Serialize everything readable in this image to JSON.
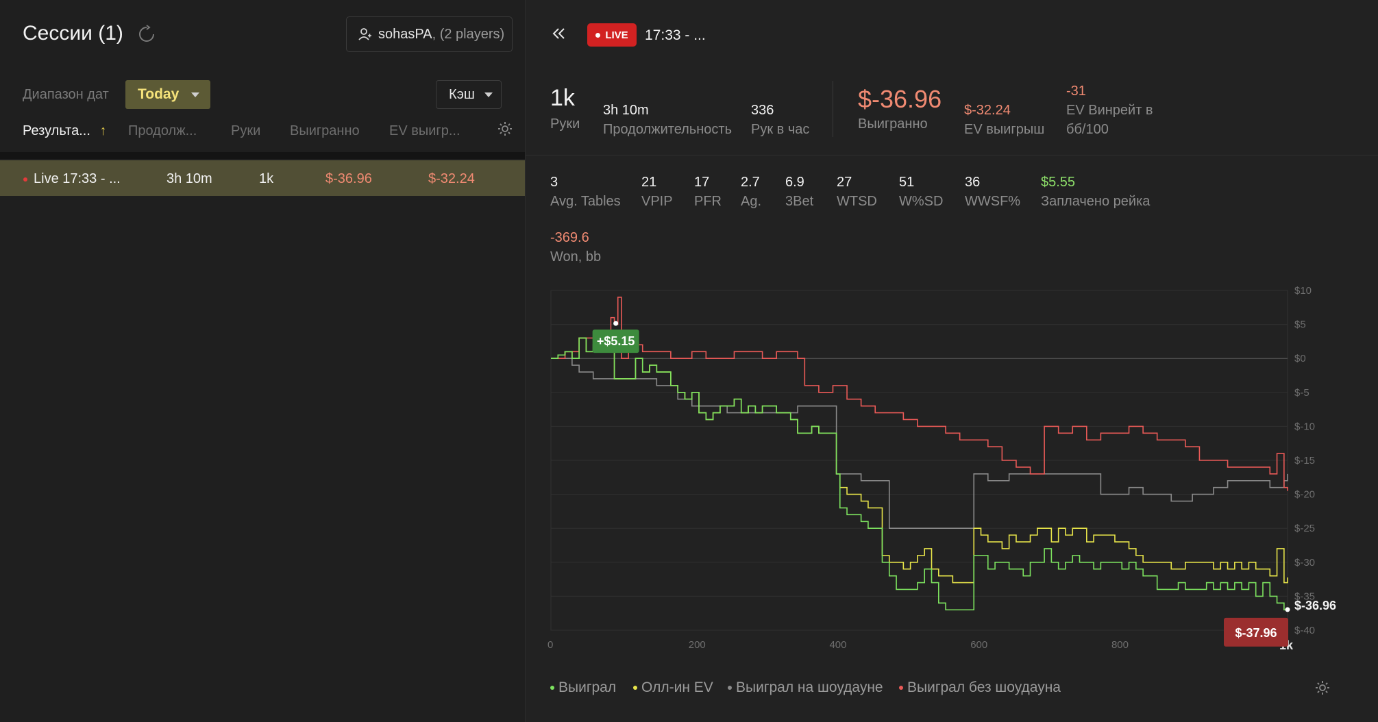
{
  "sessions": {
    "title": "Сессии (1)",
    "player_name": "sohasPA",
    "player_count": ", (2 players)",
    "date_range_label": "Диапазон дат",
    "date_range_value": "Today",
    "game_type": "Кэш",
    "columns": [
      "Результа...",
      "Продолж...",
      "Руки",
      "Выигранно",
      "EV выигр..."
    ],
    "sort_arrow": "↑",
    "rows": [
      {
        "name": "Live 17:33 - ...",
        "duration": "3h 10m",
        "hands": "1k",
        "won": "$-36.96",
        "ev_won": "$-32.24"
      }
    ]
  },
  "session": {
    "live_label": "LIVE",
    "title": "17:33 - ...",
    "stats": {
      "hands_value": "1k",
      "hands_label": "Руки",
      "duration_value": "3h 10m",
      "duration_label": "Продолжительность",
      "rate_value": "336",
      "rate_label": "Рук в час",
      "won_value": "$-36.96",
      "won_label": "Выигранно",
      "ev_value": "$-32.24",
      "ev_label": "EV выигрыш",
      "evbb_value": "-31",
      "evbb_label_1": "EV Винрейт в",
      "evbb_label_2": "бб/100"
    },
    "stats2": [
      {
        "value": "3",
        "label": "Avg. Tables"
      },
      {
        "value": "21",
        "label": "VPIP"
      },
      {
        "value": "17",
        "label": "PFR"
      },
      {
        "value": "2.7",
        "label": "Ag."
      },
      {
        "value": "6.9",
        "label": "3Bet"
      },
      {
        "value": "27",
        "label": "WTSD"
      },
      {
        "value": "51",
        "label": "W%SD"
      },
      {
        "value": "36",
        "label": "WWSF%"
      },
      {
        "value": "$5.55",
        "label": "Заплачено рейка"
      }
    ],
    "won_bb_value": "-369.6",
    "won_bb_label": "Won, bb"
  },
  "chart_data": {
    "type": "line",
    "x_ticks": [
      "0",
      "200",
      "400",
      "600",
      "800",
      "1k"
    ],
    "y_ticks": [
      "$10",
      "$5",
      "$0",
      "$-5",
      "$-10",
      "$-15",
      "$-20",
      "$-25",
      "$-30",
      "$-35",
      "$-40"
    ],
    "xlim": [
      0,
      1045
    ],
    "ylim": [
      -40,
      10
    ],
    "grid": true,
    "end_label": "$-36.96",
    "max_tooltip": "+$5.15",
    "min_tooltip": "$-37.96",
    "legend": [
      "Выиграл",
      "Олл-ин EV",
      "Выиграл на шоудауне",
      "Выиграл без шоудауна"
    ],
    "legend_placement": "bottom",
    "series": [
      {
        "name": "Выиграл",
        "color": "#7de35f",
        "x": [
          0,
          10,
          20,
          30,
          40,
          50,
          60,
          70,
          80,
          90,
          100,
          110,
          120,
          130,
          140,
          150,
          160,
          170,
          180,
          190,
          200,
          210,
          220,
          230,
          240,
          250,
          260,
          270,
          280,
          290,
          300,
          310,
          320,
          330,
          340,
          350,
          360,
          370,
          380,
          390,
          400,
          405,
          410,
          420,
          430,
          440,
          450,
          460,
          470,
          480,
          490,
          500,
          510,
          520,
          530,
          540,
          550,
          560,
          570,
          580,
          590,
          595,
          600,
          610,
          620,
          630,
          640,
          650,
          660,
          670,
          680,
          690,
          700,
          710,
          720,
          730,
          740,
          750,
          760,
          770,
          780,
          790,
          800,
          810,
          820,
          830,
          840,
          850,
          860,
          870,
          880,
          890,
          900,
          910,
          920,
          930,
          940,
          950,
          960,
          970,
          980,
          990,
          1000,
          1010,
          1020,
          1030,
          1040,
          1045
        ],
        "y": [
          0,
          0.5,
          1,
          0,
          3,
          1,
          2,
          4,
          2,
          -3,
          -3,
          -3,
          0,
          -2,
          -1,
          -2,
          -2,
          -4,
          -5,
          -6,
          -5,
          -8,
          -9,
          -8,
          -7,
          -7,
          -6,
          -8,
          -7,
          -8,
          -7,
          -7,
          -8,
          -8,
          -9,
          -11,
          -11,
          -10,
          -11,
          -11,
          -11,
          -17,
          -22,
          -23,
          -23,
          -24,
          -25,
          -25,
          -30,
          -32,
          -34,
          -34,
          -34,
          -33,
          -31,
          -33,
          -36,
          -37,
          -37,
          -37,
          -37,
          -37,
          -29,
          -29,
          -31,
          -30,
          -30,
          -31,
          -31,
          -32,
          -30,
          -30,
          -28,
          -30,
          -31,
          -30,
          -29,
          -30,
          -30,
          -31,
          -30,
          -30,
          -30,
          -31,
          -30,
          -31,
          -32,
          -32,
          -34,
          -34,
          -34,
          -33,
          -34,
          -34,
          -34,
          -33,
          -34,
          -33,
          -34,
          -33,
          -34,
          -33,
          -35,
          -33,
          -35,
          -36,
          -37,
          -36.96
        ]
      },
      {
        "name": "Олл-ин EV",
        "color": "#e8e54a",
        "x": [
          0,
          10,
          20,
          30,
          40,
          50,
          60,
          70,
          80,
          90,
          100,
          110,
          120,
          130,
          140,
          150,
          160,
          170,
          180,
          190,
          200,
          210,
          220,
          230,
          240,
          250,
          260,
          270,
          280,
          290,
          300,
          310,
          320,
          330,
          340,
          350,
          360,
          370,
          380,
          390,
          400,
          405,
          410,
          420,
          430,
          440,
          450,
          460,
          470,
          480,
          490,
          500,
          510,
          520,
          530,
          540,
          550,
          560,
          570,
          580,
          590,
          595,
          600,
          610,
          620,
          630,
          640,
          650,
          660,
          670,
          680,
          690,
          700,
          710,
          720,
          730,
          740,
          750,
          760,
          770,
          780,
          790,
          800,
          810,
          820,
          830,
          840,
          850,
          860,
          870,
          880,
          890,
          900,
          910,
          920,
          930,
          940,
          950,
          960,
          970,
          980,
          990,
          1000,
          1010,
          1020,
          1030,
          1040,
          1045
        ],
        "y": [
          0,
          0.5,
          1,
          0,
          3,
          1,
          2,
          4,
          2,
          -3,
          -3,
          -3,
          0,
          -2,
          -1,
          -2,
          -2,
          -4,
          -5,
          -6,
          -5,
          -8,
          -9,
          -8,
          -7,
          -7,
          -6,
          -8,
          -7,
          -8,
          -7,
          -7,
          -8,
          -8,
          -9,
          -11,
          -11,
          -10,
          -11,
          -11,
          -11,
          -17,
          -19,
          -20,
          -20,
          -21,
          -22,
          -22,
          -29,
          -30,
          -30,
          -31,
          -30,
          -29,
          -28,
          -31,
          -32,
          -32,
          -33,
          -33,
          -33,
          -33,
          -25,
          -26,
          -27,
          -27,
          -28,
          -26,
          -27,
          -27,
          -26,
          -25,
          -25,
          -27,
          -25,
          -26,
          -25,
          -25,
          -27,
          -26,
          -26,
          -26,
          -27,
          -27,
          -28,
          -29,
          -30,
          -30,
          -30,
          -30,
          -31,
          -31,
          -30,
          -30,
          -30,
          -30,
          -31,
          -30,
          -31,
          -30,
          -31,
          -30,
          -31,
          -31,
          -32,
          -28,
          -33,
          -32.24
        ]
      },
      {
        "name": "Выиграл на шоудауне",
        "color": "#8a8a8a",
        "x": [
          0,
          20,
          30,
          40,
          50,
          60,
          70,
          80,
          90,
          100,
          120,
          130,
          150,
          180,
          200,
          210,
          230,
          250,
          270,
          300,
          320,
          340,
          350,
          360,
          370,
          390,
          400,
          405,
          410,
          420,
          430,
          440,
          450,
          460,
          480,
          500,
          520,
          540,
          560,
          580,
          590,
          595,
          600,
          620,
          650,
          680,
          700,
          720,
          740,
          760,
          780,
          800,
          820,
          830,
          840,
          850,
          870,
          880,
          900,
          910,
          920,
          940,
          950,
          960,
          980,
          1000,
          1020,
          1040,
          1045
        ],
        "y": [
          0,
          0,
          -1,
          -2,
          -2,
          -3,
          -3,
          -3,
          -3,
          -3,
          -3,
          -3,
          -4,
          -6,
          -7,
          -7,
          -7,
          -8,
          -8,
          -8,
          -8,
          -8,
          -7,
          -7,
          -7,
          -7,
          -7,
          -17,
          -17,
          -17,
          -17,
          -18,
          -18,
          -18,
          -25,
          -25,
          -25,
          -25,
          -25,
          -25,
          -25,
          -25,
          -17,
          -18,
          -17,
          -17,
          -17,
          -17,
          -17,
          -17,
          -20,
          -20,
          -19,
          -19,
          -20,
          -20,
          -20,
          -21,
          -21,
          -20,
          -20,
          -19,
          -19,
          -18,
          -18,
          -18,
          -19,
          -18,
          -17
        ]
      },
      {
        "name": "Выиграл без шоудауна",
        "color": "#ea5a57",
        "x": [
          0,
          20,
          40,
          50,
          60,
          70,
          80,
          85,
          90,
          95,
          100,
          110,
          130,
          150,
          170,
          190,
          200,
          220,
          240,
          260,
          280,
          300,
          320,
          340,
          350,
          360,
          370,
          380,
          400,
          420,
          440,
          460,
          480,
          500,
          520,
          540,
          560,
          580,
          600,
          620,
          640,
          660,
          680,
          700,
          720,
          740,
          760,
          780,
          800,
          820,
          840,
          860,
          880,
          900,
          920,
          940,
          960,
          980,
          1000,
          1010,
          1020,
          1030,
          1040,
          1045
        ],
        "y": [
          0,
          1,
          3,
          3,
          3,
          3,
          4,
          6,
          5,
          9,
          0,
          2,
          1,
          1,
          0,
          0,
          1,
          0,
          0,
          1,
          1,
          0,
          1,
          1,
          0,
          -4,
          -4,
          -5,
          -4,
          -6,
          -7,
          -8,
          -8,
          -9,
          -10,
          -10,
          -11,
          -12,
          -12,
          -13,
          -15,
          -16,
          -17,
          -10,
          -11,
          -10,
          -12,
          -11,
          -11,
          -10,
          -11,
          -12,
          -12,
          -13,
          -15,
          -15,
          -16,
          -16,
          -16,
          -16,
          -17,
          -14,
          -19,
          -19.5
        ]
      }
    ]
  }
}
